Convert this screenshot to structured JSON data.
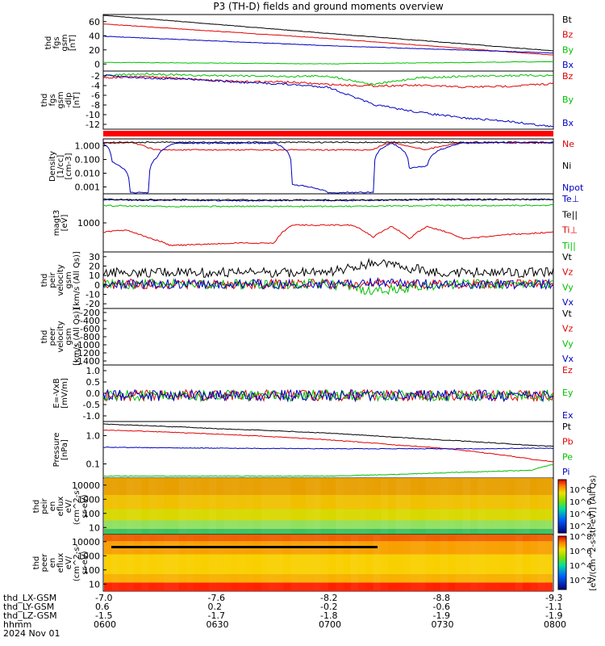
{
  "title": "P3 (TH-D) fields and ground moments overview",
  "colors": {
    "black": "#000000",
    "red": "#e00000",
    "green": "#00c000",
    "blue": "#0000c0"
  },
  "chart_data": [
    {
      "type": "line",
      "panel": "fgs-gsm",
      "ylabel": [
        "thd",
        "fgs",
        "gsm",
        "[nT]"
      ],
      "yticks": [
        "60",
        "40",
        "20",
        "0"
      ],
      "ylim": [
        -10,
        68
      ],
      "x": [
        0,
        0.5,
        1
      ],
      "series": [
        {
          "name": "Bt",
          "color": "black",
          "values": [
            67,
            42,
            18
          ]
        },
        {
          "name": "Bz",
          "color": "red",
          "values": [
            55,
            35,
            12
          ]
        },
        {
          "name": "By",
          "color": "green",
          "values": [
            2,
            0,
            3
          ]
        },
        {
          "name": "Bx",
          "color": "blue",
          "values": [
            38,
            25,
            15
          ]
        }
      ]
    },
    {
      "type": "line",
      "panel": "fgs-gsm-dlp",
      "ylabel": [
        "thd",
        "fgs",
        "gsm",
        "-dlp",
        "[nT]"
      ],
      "yticks": [
        "-2",
        "-4",
        "-6",
        "-8",
        "-10",
        "-12"
      ],
      "ylim": [
        -13,
        0
      ],
      "x": [
        0,
        0.1,
        0.2,
        0.3,
        0.4,
        0.5,
        0.6,
        0.7,
        0.8,
        0.9,
        1
      ],
      "series": [
        {
          "name": "Bz",
          "color": "red",
          "values": [
            -1.5,
            -1.2,
            -1.8,
            -2.4,
            -2.4,
            -3,
            -3.3,
            -3.2,
            -3.6,
            -3.4,
            -2.8
          ]
        },
        {
          "name": "By",
          "color": "green",
          "values": [
            -1,
            -0.6,
            -1,
            -1,
            -1.2,
            -1.1,
            -3,
            -1.5,
            -1.2,
            -1,
            -1
          ]
        },
        {
          "name": "Bx",
          "color": "blue",
          "values": [
            -1,
            -1.6,
            -1.8,
            -2.5,
            -2.9,
            -3.6,
            -7.5,
            -9.2,
            -10.5,
            -11.2,
            -12.5
          ]
        }
      ]
    },
    {
      "type": "line",
      "panel": "density",
      "log": true,
      "ylabel": [
        "Density",
        "[1/cc]",
        "[cm-3]"
      ],
      "yticks": [
        "1.000",
        "0.100",
        "0.010",
        "0.001"
      ],
      "ylim": [
        0.0005,
        1.5
      ],
      "x": [
        0,
        0.02,
        0.06,
        0.1,
        0.12,
        0.16,
        0.2,
        0.3,
        0.38,
        0.42,
        0.5,
        0.55,
        0.6,
        0.64,
        0.68,
        0.72,
        0.8,
        0.9,
        1
      ],
      "series": [
        {
          "name": "Ne",
          "color": "red",
          "values": [
            0.85,
            0.85,
            0.9,
            0.4,
            0.3,
            0.3,
            0.3,
            0.3,
            0.3,
            0.3,
            0.3,
            0.3,
            0.3,
            0.9,
            0.5,
            0.3,
            0.9,
            0.85,
            0.85
          ]
        },
        {
          "name": "Ni",
          "color": "black",
          "values": [
            0.9,
            0.9,
            0.9,
            0.9,
            0.9,
            0.9,
            0.9,
            0.9,
            0.9,
            0.9,
            0.9,
            0.9,
            0.9,
            0.9,
            0.9,
            0.9,
            0.9,
            0.9,
            0.9
          ]
        },
        {
          "name": "Npot",
          "color": "blue",
          "values": [
            0.8,
            0.05,
            0.0006,
            0.0006,
            0.1,
            0.8,
            0.8,
            0.8,
            0.8,
            0.002,
            0.0006,
            0.0006,
            0.0006,
            0.8,
            0.02,
            0.03,
            0.8,
            0.9,
            0.9
          ]
        }
      ]
    },
    {
      "type": "line",
      "panel": "temperature",
      "log": true,
      "ylabel": [
        "magt3",
        "[eV]"
      ],
      "yticks": [
        "1000"
      ],
      "ylim": [
        200,
        8000
      ],
      "x": [
        0,
        0.05,
        0.1,
        0.15,
        0.3,
        0.38,
        0.42,
        0.55,
        0.6,
        0.64,
        0.68,
        0.72,
        0.8,
        0.9,
        1
      ],
      "series": [
        {
          "name": "Te⊥",
          "color": "blue",
          "values": [
            5500,
            5400,
            5300,
            5300,
            5200,
            5200,
            5300,
            5200,
            5300,
            5400,
            5400,
            5500,
            5500,
            5600,
            5600
          ]
        },
        {
          "name": "Te||",
          "color": "black",
          "values": [
            5600,
            5500,
            5500,
            5500,
            5400,
            5400,
            5400,
            5400,
            5400,
            5500,
            5500,
            5600,
            5600,
            5600,
            5600
          ]
        },
        {
          "name": "Ti⊥",
          "color": "red",
          "values": [
            700,
            800,
            500,
            300,
            350,
            350,
            1100,
            1100,
            500,
            1000,
            450,
            1000,
            450,
            600,
            700
          ]
        },
        {
          "name": "Ti||",
          "color": "green",
          "values": [
            3800,
            3700,
            3700,
            3600,
            3600,
            3600,
            3600,
            3600,
            3600,
            3700,
            3700,
            3800,
            3800,
            3800,
            3900
          ]
        }
      ]
    },
    {
      "type": "line",
      "panel": "peir-velocity",
      "ylabel": [
        "thd",
        "peir",
        "velocity",
        "gsm",
        "[km/s (All Qs)]"
      ],
      "yticks": [
        "30",
        "20",
        "10",
        "0",
        "-10",
        "-20"
      ],
      "ylim": [
        -25,
        33
      ],
      "x": [
        0,
        0.25,
        0.5,
        0.6,
        0.75,
        1
      ],
      "series": [
        {
          "name": "Vt",
          "color": "black",
          "values": [
            12,
            12,
            12,
            22,
            12,
            12
          ]
        },
        {
          "name": "Vz",
          "color": "red",
          "values": [
            0,
            0,
            0,
            0,
            0,
            0
          ]
        },
        {
          "name": "Vy",
          "color": "green",
          "values": [
            0,
            0,
            0,
            -8,
            0,
            0
          ]
        },
        {
          "name": "Vx",
          "color": "blue",
          "values": [
            0,
            0,
            0,
            2,
            0,
            0
          ]
        }
      ]
    },
    {
      "type": "line",
      "panel": "peer-velocity",
      "ylabel": [
        "thd",
        "peer",
        "velocity",
        "gsm",
        "[km/s (All Qs)]"
      ],
      "yticks": [
        "-200",
        "-400",
        "-600",
        "-800",
        "-1000",
        "-1200",
        "-1400"
      ],
      "ylim": [
        -1450,
        -100
      ],
      "series": [
        {
          "name": "Vt",
          "color": "black",
          "values": []
        },
        {
          "name": "Vz",
          "color": "red",
          "values": []
        },
        {
          "name": "Vy",
          "color": "green",
          "values": []
        },
        {
          "name": "Vx",
          "color": "blue",
          "values": []
        }
      ]
    },
    {
      "type": "line",
      "panel": "efield",
      "ylabel": [
        "E=-VxB",
        "[mV/m]"
      ],
      "yticks": [
        "1.0",
        "0.5",
        "0.0",
        "-0.5",
        "-1.0"
      ],
      "ylim": [
        -1.15,
        1.35
      ],
      "x": [
        0,
        0.5,
        1
      ],
      "series": [
        {
          "name": "Ez",
          "color": "red",
          "values": [
            0,
            0,
            0
          ]
        },
        {
          "name": "Ey",
          "color": "green",
          "values": [
            0,
            0,
            0
          ]
        },
        {
          "name": "Ex",
          "color": "blue",
          "values": [
            0,
            0,
            0
          ]
        }
      ]
    },
    {
      "type": "line",
      "panel": "pressure",
      "log": true,
      "ylabel": [
        "Pressure",
        "[nPa]"
      ],
      "yticks": [
        "1.0",
        "0.1"
      ],
      "ylim": [
        0.035,
        1.8
      ],
      "x": [
        0,
        0.25,
        0.5,
        0.65,
        0.75,
        0.85,
        0.95,
        1
      ],
      "series": [
        {
          "name": "Pt",
          "color": "black",
          "values": [
            1.5,
            1.1,
            0.8,
            0.6,
            0.5,
            0.42,
            0.34,
            0.32
          ]
        },
        {
          "name": "Pb",
          "color": "red",
          "values": [
            1.0,
            0.75,
            0.5,
            0.35,
            0.28,
            0.2,
            0.13,
            0.11
          ]
        },
        {
          "name": "Pe",
          "color": "green",
          "values": [
            0.04,
            0.04,
            0.04,
            0.045,
            0.05,
            0.055,
            0.06,
            0.09
          ]
        },
        {
          "name": "Pi",
          "color": "blue",
          "values": [
            0.3,
            0.28,
            0.27,
            0.27,
            0.27,
            0.27,
            0.28,
            0.28
          ]
        }
      ]
    },
    {
      "type": "heatmap",
      "panel": "peir-en-eflux",
      "ylabel": [
        "thd",
        "peir",
        "en",
        "eflux",
        "eV/",
        "(cm^2-s-",
        "sr-eV)"
      ],
      "yticks": [
        "10000",
        "1000",
        "100",
        "10"
      ]
    },
    {
      "type": "heatmap",
      "panel": "peer-en-eflux",
      "ylabel": [
        "thd",
        "peer",
        "en",
        "eflux",
        "eV/",
        "(cm^2-s-",
        "sr-eV)"
      ],
      "yticks": [
        "10000",
        "1000",
        "100",
        "10"
      ]
    }
  ],
  "colorbar": {
    "ticks1": [
      "10^8",
      "10^6",
      "10^4",
      "10^2"
    ],
    "ticks2": [
      "10^8",
      "10^6",
      "10^4",
      "10^2"
    ],
    "label": "[eV/(cm^2-s-str-eV)] (All Qs)"
  },
  "xaxis": {
    "hhmm": [
      "0600",
      "0630",
      "0700",
      "0730",
      "0800"
    ],
    "rows": [
      {
        "label": "thd_LX-GSM",
        "values": [
          "-7.0",
          "-7.6",
          "-8.2",
          "-8.8",
          "-9.3"
        ]
      },
      {
        "label": "thd_LY-GSM",
        "values": [
          "0.6",
          "0.2",
          "-0.2",
          "-0.6",
          "-1.1"
        ]
      },
      {
        "label": "thd_LZ-GSM",
        "values": [
          "-1.5",
          "-1.7",
          "-1.8",
          "-1.9",
          "-1.9"
        ]
      }
    ],
    "hhmm_label": "hhmm",
    "date": "2024 Nov 01"
  }
}
